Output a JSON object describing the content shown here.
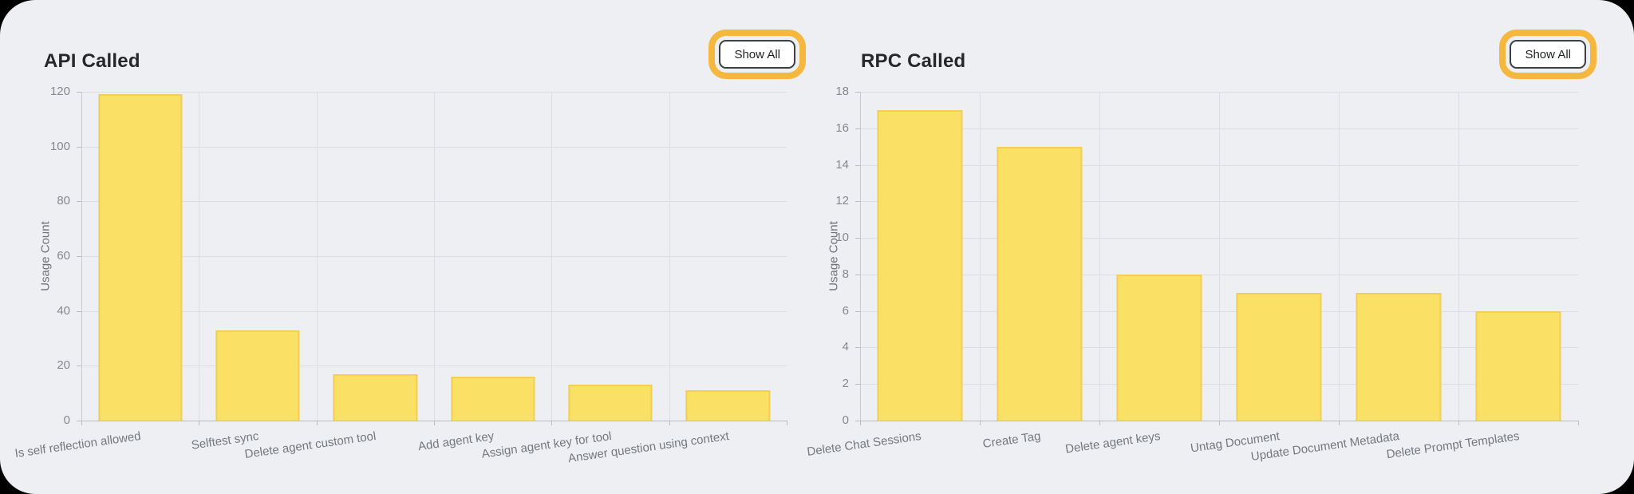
{
  "ui": {
    "show_all_label": "Show All",
    "highlight_ring_color": "#F6B73E",
    "card_background": "#EDEFF3",
    "bar_fill": "#FAE064",
    "bar_border": "#F2CF52"
  },
  "chart_data": [
    {
      "type": "bar",
      "title": "API Called",
      "xlabel": "",
      "ylabel": "Usage Count",
      "categories": [
        "Is self reflection allowed",
        "Selftest sync",
        "Delete agent custom tool",
        "Add agent key",
        "Assign agent key for tool",
        "Answer question using context"
      ],
      "values": [
        119,
        33,
        17,
        16,
        13,
        11
      ],
      "ylim": [
        0,
        120
      ],
      "yticks": [
        0,
        20,
        40,
        60,
        80,
        100,
        120
      ],
      "grid": true,
      "legend": false,
      "bar_color": "#FAE064",
      "bar_border_color": "#F2CF52"
    },
    {
      "type": "bar",
      "title": "RPC Called",
      "xlabel": "",
      "ylabel": "Usage Count",
      "categories": [
        "Delete Chat Sessions",
        "Create Tag",
        "Delete agent keys",
        "Untag Document",
        "Update Document Metadata",
        "Delete Prompt Templates"
      ],
      "values": [
        17,
        15,
        8,
        7,
        7,
        6
      ],
      "ylim": [
        0,
        18
      ],
      "yticks": [
        0,
        2,
        4,
        6,
        8,
        10,
        12,
        14,
        16,
        18
      ],
      "grid": true,
      "legend": false,
      "bar_color": "#FAE064",
      "bar_border_color": "#F2CF52"
    }
  ]
}
